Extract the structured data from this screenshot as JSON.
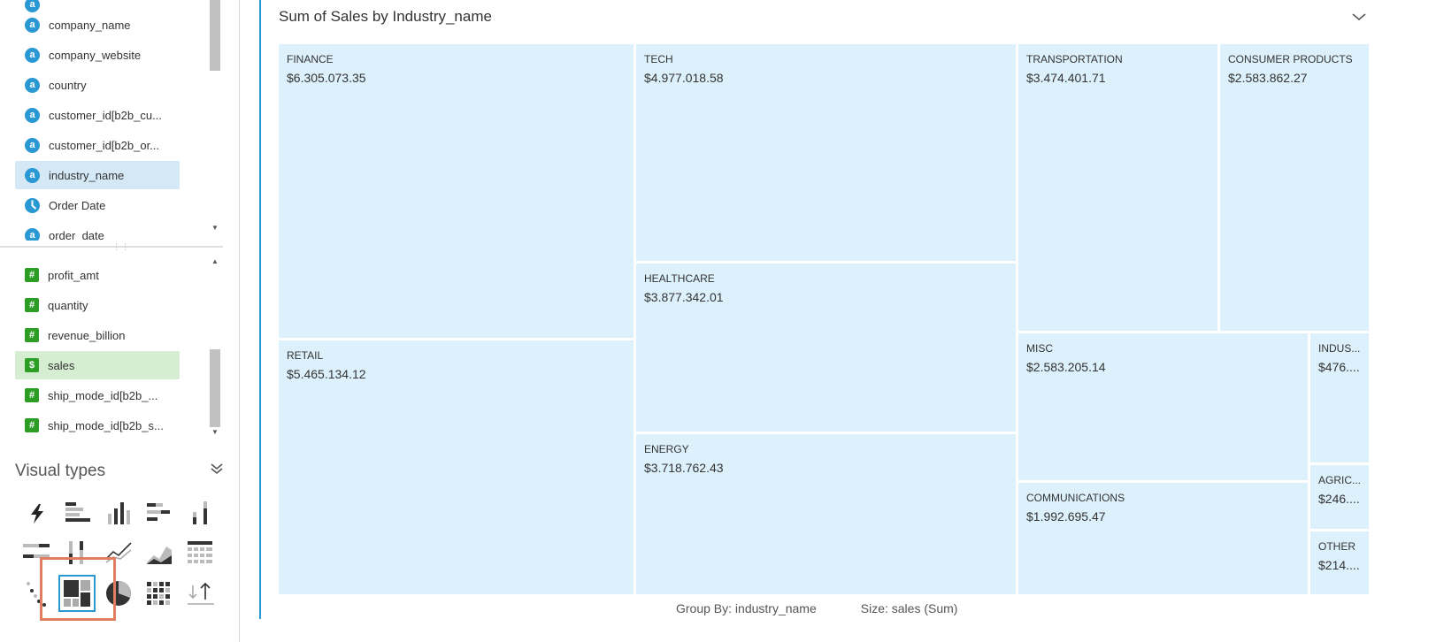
{
  "field_list": {
    "dimensions": [
      {
        "label": "company_name",
        "type": "string"
      },
      {
        "label": "company_website",
        "type": "string"
      },
      {
        "label": "country",
        "type": "string"
      },
      {
        "label": "customer_id[b2b_cu...",
        "type": "string"
      },
      {
        "label": "customer_id[b2b_or...",
        "type": "string"
      },
      {
        "label": "industry_name",
        "type": "string",
        "selected": true
      },
      {
        "label": "Order Date",
        "type": "date"
      },
      {
        "label": "order_date",
        "type": "string"
      }
    ],
    "measures": [
      {
        "label": "profit_amt",
        "type": "number"
      },
      {
        "label": "quantity",
        "type": "number"
      },
      {
        "label": "revenue_billion",
        "type": "number"
      },
      {
        "label": "sales",
        "type": "currency",
        "selected": true
      },
      {
        "label": "ship_mode_id[b2b_...",
        "type": "number"
      },
      {
        "label": "ship_mode_id[b2b_s...",
        "type": "number"
      }
    ]
  },
  "visual_types": {
    "title": "Visual types",
    "items": [
      "autograph",
      "horizontal-bar",
      "vertical-bar",
      "horizontal-stacked-bar",
      "vertical-stacked-bar",
      "horizontal-100-bar",
      "vertical-100-bar",
      "line-chart",
      "area-chart",
      "pivot-table",
      "scatter-plot",
      "tree-map",
      "pie-chart",
      "heat-map",
      "kpi"
    ],
    "selected": "tree-map"
  },
  "visual": {
    "title": "Sum of Sales by Industry_name",
    "legend_group": "Group By: industry_name",
    "legend_size": "Size: sales (Sum)"
  },
  "chart_data": {
    "type": "treemap",
    "title": "Sum of Sales by Industry_name",
    "categories": [
      "FINANCE",
      "RETAIL",
      "TECH",
      "HEALTHCARE",
      "ENERGY",
      "TRANSPORTATION",
      "CONSUMER PRODUCTS",
      "MISC",
      "COMMUNICATIONS",
      "INDUS...",
      "AGRIC...",
      "OTHER"
    ],
    "labels": [
      "$6.305.073.35",
      "$5.465.134.12",
      "$4.977.018.58",
      "$3.877.342.01",
      "$3.718.762.43",
      "$3.474.401.71",
      "$2.583.862.27",
      "$2.583.205.14",
      "$1.992.695.47",
      "$476....",
      "$246....",
      "$214...."
    ],
    "values": [
      6305073.35,
      5465134.12,
      4977018.58,
      3877342.01,
      3718762.43,
      3474401.71,
      2583862.27,
      2583205.14,
      1992695.47,
      476000,
      246000,
      214000
    ],
    "group_by": "industry_name",
    "size": "sales (Sum)"
  },
  "colors": {
    "accent": "#2a98d3",
    "tile_fill": "#ddf1fc",
    "dimension_icon": "#2a98d3",
    "measure_icon": "#2c9e25",
    "highlight": "#e07f5f"
  }
}
